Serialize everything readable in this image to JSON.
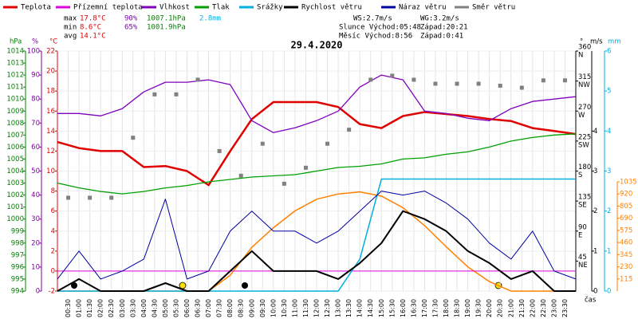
{
  "chart_data": {
    "type": "line",
    "title": "29.4.2020",
    "time_label": "čas",
    "stats": [
      {
        "label": "max",
        "temp": "17.8°C",
        "hum": "90%",
        "press": "1007.1hPa",
        "rain": "2.8mm"
      },
      {
        "label": "min",
        "temp": "8.6°C",
        "hum": "65%",
        "press": "1001.9hPa"
      },
      {
        "label": "avg",
        "temp": "14.1°C"
      }
    ],
    "info": [
      "WS:2.7m/s",
      "WG:3.2m/s",
      "Slunce Východ:05:48",
      "Západ:20:21",
      "Měsíc Východ:8:56",
      "Západ:0:41"
    ],
    "x": [
      0,
      1,
      2,
      3,
      4,
      5,
      6,
      7,
      8,
      9,
      10,
      11,
      12,
      13,
      14,
      15,
      16,
      17,
      18,
      19,
      20,
      21,
      22,
      23,
      24
    ],
    "xlim": [
      0,
      24
    ],
    "xticks": [
      {
        "value": 0.5,
        "label": "00:30"
      },
      {
        "value": 1,
        "label": "01:00"
      },
      {
        "value": 1.5,
        "label": "01:30"
      },
      {
        "value": 2,
        "label": "02:00"
      },
      {
        "value": 2.5,
        "label": "02:30"
      },
      {
        "value": 3,
        "label": "03:00"
      },
      {
        "value": 3.5,
        "label": "03:30"
      },
      {
        "value": 4,
        "label": "04:00"
      },
      {
        "value": 4.5,
        "label": "04:30"
      },
      {
        "value": 5,
        "label": "05:00"
      },
      {
        "value": 5.5,
        "label": "05:30"
      },
      {
        "value": 6,
        "label": "06:00"
      },
      {
        "value": 6.5,
        "label": "06:30"
      },
      {
        "value": 7,
        "label": "07:00"
      },
      {
        "value": 7.5,
        "label": "07:30"
      },
      {
        "value": 8,
        "label": "08:00"
      },
      {
        "value": 8.5,
        "label": "08:30"
      },
      {
        "value": 9,
        "label": "09:00"
      },
      {
        "value": 9.5,
        "label": "09:30"
      },
      {
        "value": 10,
        "label": "10:00"
      },
      {
        "value": 10.5,
        "label": "10:30"
      },
      {
        "value": 11,
        "label": "11:00"
      },
      {
        "value": 11.5,
        "label": "11:30"
      },
      {
        "value": 12,
        "label": "12:00"
      },
      {
        "value": 12.5,
        "label": "12:30"
      },
      {
        "value": 13,
        "label": "13:00"
      },
      {
        "value": 13.5,
        "label": "13:30"
      },
      {
        "value": 14,
        "label": "14:00"
      },
      {
        "value": 14.5,
        "label": "14:30"
      },
      {
        "value": 15,
        "label": "15:00"
      },
      {
        "value": 15.5,
        "label": "15:30"
      },
      {
        "value": 16,
        "label": "16:00"
      },
      {
        "value": 16.5,
        "label": "16:30"
      },
      {
        "value": 17,
        "label": "17:00"
      },
      {
        "value": 17.5,
        "label": "17:30"
      },
      {
        "value": 18,
        "label": "18:00"
      },
      {
        "value": 18.5,
        "label": "18:30"
      },
      {
        "value": 19,
        "label": "19:00"
      },
      {
        "value": 19.5,
        "label": "19:30"
      },
      {
        "value": 20,
        "label": "20:00"
      },
      {
        "value": 20.5,
        "label": "20:30"
      },
      {
        "value": 21,
        "label": "21:00"
      },
      {
        "value": 21.5,
        "label": "21:30"
      },
      {
        "value": 22,
        "label": "22:00"
      },
      {
        "value": 22.5,
        "label": "22:30"
      },
      {
        "value": 23,
        "label": "23:00"
      },
      {
        "value": 23.5,
        "label": "23:30"
      }
    ],
    "axes": [
      {
        "label": "hPa",
        "color": "#008000",
        "lim": [
          994,
          1014
        ],
        "ticks": [
          994,
          995,
          996,
          997,
          998,
          999,
          1000,
          1001,
          1002,
          1003,
          1004,
          1005,
          1006,
          1007,
          1008,
          1009,
          1010,
          1011,
          1012,
          1013,
          1014
        ]
      },
      {
        "label": "%",
        "color": "#8000a0",
        "lim": [
          0,
          100
        ],
        "ticks": [
          0,
          10,
          20,
          30,
          40,
          50,
          60,
          70,
          80,
          90,
          100
        ]
      },
      {
        "label": "°C",
        "color": "#e00000",
        "lim": [
          -2,
          22
        ],
        "ticks": [
          -2,
          0,
          2,
          4,
          6,
          8,
          10,
          12,
          14,
          16,
          18,
          20,
          22
        ]
      },
      {
        "label": "°",
        "color": "#000000",
        "lim": [
          0,
          360
        ],
        "ticks": [
          45,
          90,
          135,
          180,
          225,
          270,
          315,
          360
        ],
        "names": [
          "NE",
          "E",
          "SE",
          "S",
          "SW",
          "W",
          "NW",
          "N"
        ]
      },
      {
        "label": "m/s",
        "color": "#000000",
        "lim": [
          0,
          6
        ],
        "ticks": [
          0,
          1,
          2,
          3,
          4
        ]
      },
      {
        "label": "mm",
        "color": "#00b0e0",
        "lim": [
          0,
          6
        ],
        "ticks": [
          0,
          1,
          2,
          3,
          4,
          5,
          6
        ]
      },
      {
        "color": "#ff8000",
        "lim": [
          0,
          1035
        ],
        "ticks": [
          115,
          230,
          345,
          460,
          575,
          690,
          805,
          920,
          1035
        ]
      }
    ],
    "series": [
      {
        "name": "Teplota",
        "color": "#e00000",
        "axis": 2,
        "values": [
          12.9,
          12.3,
          12,
          12,
          10.4,
          10.5,
          10,
          8.6,
          12,
          15.2,
          16.9,
          16.9,
          16.9,
          16.4,
          14.7,
          14.3,
          15.5,
          15.9,
          15.7,
          15.5,
          15.2,
          15,
          14.3,
          14,
          13.7
        ]
      },
      {
        "name": "Přízemní teplota",
        "color": "#e000e0",
        "axis": 2,
        "values": [
          0,
          0,
          0,
          0,
          0,
          0,
          0,
          0,
          0,
          0,
          0,
          0,
          0,
          0,
          0,
          0,
          0,
          0,
          0,
          0,
          0,
          0,
          0,
          0,
          0
        ]
      },
      {
        "name": "Vlhkost",
        "color": "#8000c0",
        "axis": 1,
        "values": [
          74,
          74,
          73,
          76,
          83,
          87,
          87,
          88,
          86,
          71,
          66,
          68,
          71,
          75,
          85,
          90,
          88,
          75,
          74,
          72,
          71,
          76,
          79,
          80,
          81
        ]
      },
      {
        "name": "Tlak",
        "color": "#00a000",
        "axis": 0,
        "values": [
          1003,
          1002.6,
          1002.3,
          1002.1,
          1002.3,
          1002.6,
          1002.8,
          1003.1,
          1003.3,
          1003.5,
          1003.6,
          1003.7,
          1004,
          1004.3,
          1004.4,
          1004.6,
          1005,
          1005.1,
          1005.4,
          1005.6,
          1006,
          1006.5,
          1006.8,
          1007,
          1007.1
        ]
      },
      {
        "name": "Srážky",
        "color": "#00b0e0",
        "axis": 5,
        "values": [
          0,
          0,
          0,
          0,
          0,
          0,
          0,
          0,
          0,
          0,
          0,
          0,
          0,
          0,
          0.8,
          2.8,
          2.8,
          2.8,
          2.8,
          2.8,
          2.8,
          2.8,
          2.8,
          2.8,
          2.8
        ]
      },
      {
        "name": "Rychlost větru",
        "color": "#000000",
        "axis": 4,
        "values": [
          0,
          0.3,
          0,
          0,
          0,
          0.2,
          0,
          0,
          0.5,
          1,
          0.5,
          0.5,
          0.5,
          0.3,
          0.7,
          1.2,
          2,
          1.8,
          1.5,
          1,
          0.7,
          0.3,
          0.5,
          0,
          0
        ]
      },
      {
        "name": "Náraz větru",
        "color": "#0000a0",
        "axis": 4,
        "values": [
          0.3,
          1,
          0.3,
          0.5,
          0.8,
          2.3,
          0.3,
          0.5,
          1.5,
          2,
          1.5,
          1.5,
          1.2,
          1.5,
          2,
          2.5,
          2.4,
          2.5,
          2.2,
          1.8,
          1.2,
          0.8,
          1.5,
          0.5,
          0.3
        ]
      },
      {
        "name": "Směr větru",
        "color": "#808080",
        "axis": 3,
        "type": "scatter",
        "x": [
          0.5,
          1.5,
          2.5,
          3.5,
          4.5,
          5.5,
          6.5,
          7.5,
          8.5,
          9.5,
          10.5,
          11.5,
          12.5,
          13.5,
          14.5,
          15.5,
          16.5,
          17.5,
          18.5,
          19.5,
          20.5,
          21.5,
          22.5,
          23.5
        ],
        "values": [
          140,
          140,
          140,
          230,
          295,
          295,
          317,
          210,
          173,
          221,
          161,
          185,
          221,
          242,
          317,
          323,
          317,
          311,
          311,
          311,
          308,
          305,
          316,
          316
        ]
      }
    ],
    "radiation": {
      "color": "#ff8000",
      "axis": 6,
      "values": [
        0,
        0,
        0,
        0,
        0,
        0,
        0,
        0,
        150,
        415,
        600,
        760,
        870,
        920,
        940,
        900,
        790,
        620,
        420,
        230,
        90,
        0,
        0,
        0,
        0
      ]
    }
  }
}
